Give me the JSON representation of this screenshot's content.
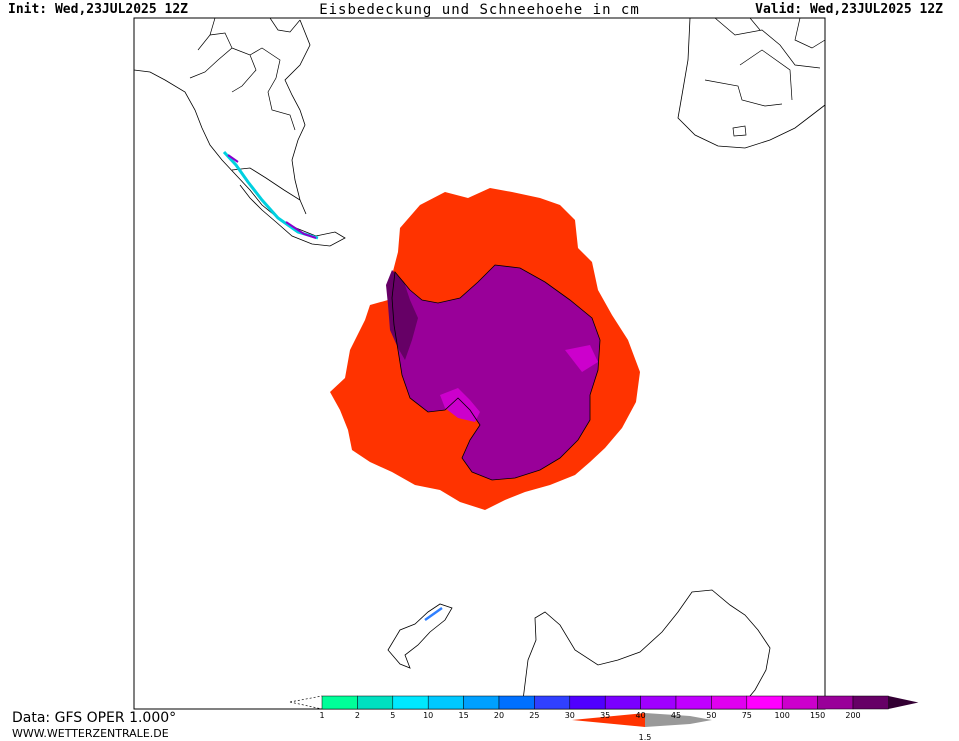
{
  "header": {
    "init": "Init: Wed,23JUL2025 12Z",
    "title": "Eisbedeckung und Schneehoehe in cm",
    "valid": "Valid: Wed,23JUL2025 12Z"
  },
  "colors": {
    "sea_ice": "#ff3300",
    "snow_deep": "#990099",
    "snow_dark": "#660066",
    "snow_magenta": "#cc00cc",
    "frame": "#000000",
    "coast": "#000000"
  },
  "legend": {
    "values": [
      "1",
      "2",
      "5",
      "10",
      "15",
      "20",
      "25",
      "30",
      "35",
      "40",
      "45",
      "50",
      "75",
      "100",
      "150",
      "200"
    ],
    "colors": [
      "#00ff99",
      "#00e0c0",
      "#00e8ff",
      "#00c8ff",
      "#00a0ff",
      "#0070ff",
      "#3040ff",
      "#5000ff",
      "#7a00ff",
      "#a000ff",
      "#c000ff",
      "#e000f0",
      "#ff00ff",
      "#cc00cc",
      "#990099",
      "#660066",
      "#330033"
    ],
    "ice_label": "1.5",
    "ice_colors": [
      "#ff3300",
      "#999999"
    ]
  },
  "footer": {
    "data": "Data: GFS OPER 1.000°",
    "site": "WWW.WETTERZENTRALE.DE"
  }
}
